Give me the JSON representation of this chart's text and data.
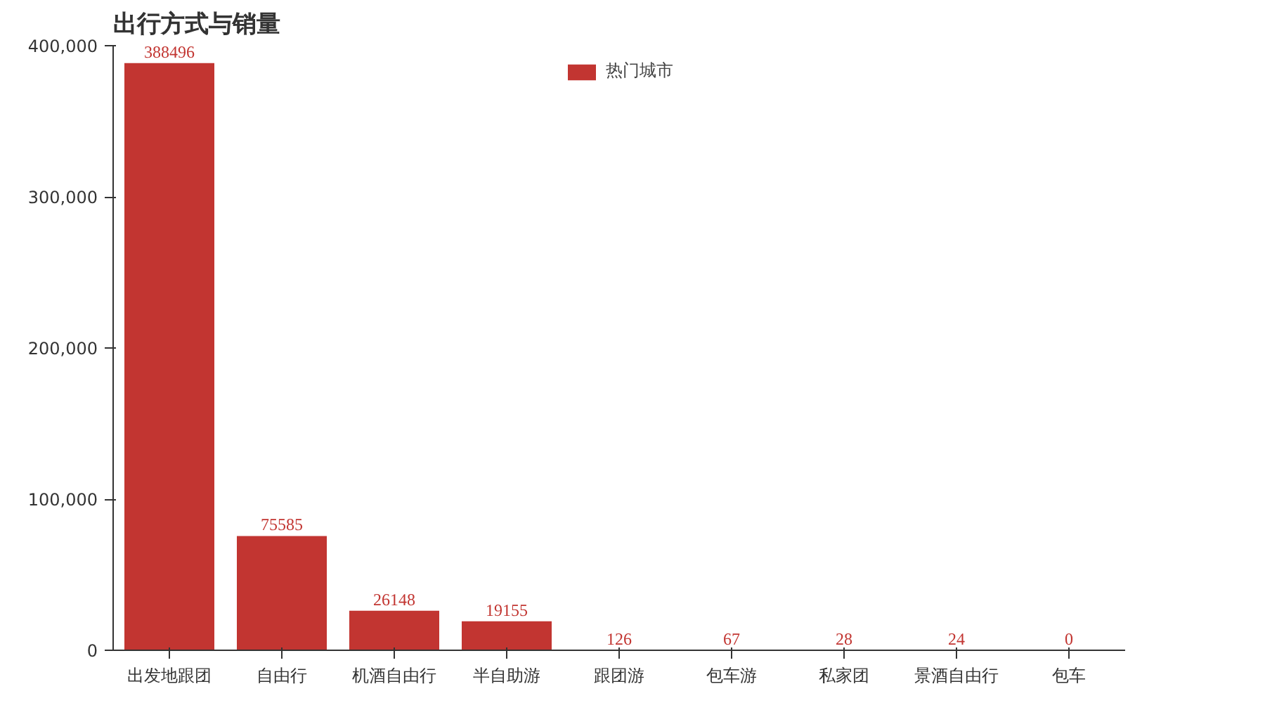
{
  "chart_data": {
    "type": "bar",
    "title": "出行方式与销量",
    "categories": [
      "出发地跟团",
      "自由行",
      "机酒自由行",
      "半自助游",
      "跟团游",
      "包车游",
      "私家团",
      "景酒自由行",
      "包车"
    ],
    "series": [
      {
        "name": "热门城市",
        "color": "#c23531",
        "values": [
          388496,
          75585,
          26148,
          19155,
          126,
          67,
          28,
          24,
          0
        ]
      }
    ],
    "ylim": [
      0,
      400000
    ],
    "yticks": [
      {
        "value": 0,
        "label": "0"
      },
      {
        "value": 100000,
        "label": "100,000"
      },
      {
        "value": 200000,
        "label": "200,000"
      },
      {
        "value": 300000,
        "label": "300,000"
      },
      {
        "value": 400000,
        "label": "400,000"
      }
    ],
    "data_labels": true,
    "grid": false,
    "legend": "top"
  }
}
